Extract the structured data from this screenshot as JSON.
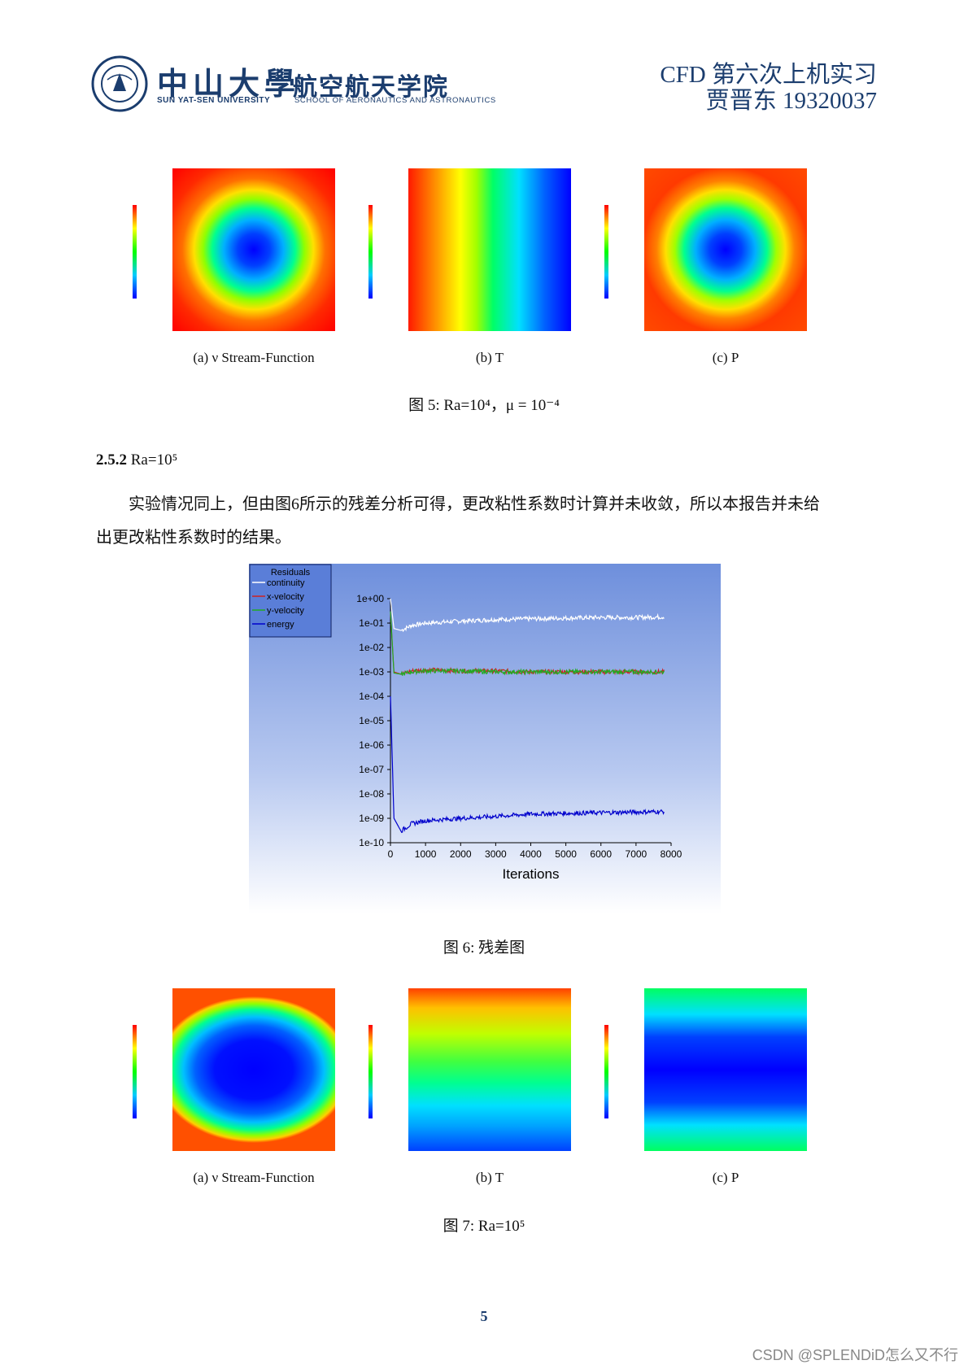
{
  "header": {
    "uni_cn": "中山大學",
    "uni_en": "SUN YAT-SEN UNIVERSITY",
    "school_cn": "航空航天学院",
    "school_en": "SCHOOL OF AERONAUTICS AND ASTRONAUTICS",
    "seal_text": "SUN YAT-SEN UNIVERSITY",
    "title": "CFD 第六次上机实习",
    "author": "贾晋东 19320037"
  },
  "figure5": {
    "captions": [
      "(a) ν Stream-Function",
      "(b) T",
      "(c) P"
    ],
    "caption": "图 5: Ra=10⁴，μ = 10⁻⁴"
  },
  "section": {
    "number": "2.5.2",
    "title": "Ra=10⁵"
  },
  "paragraph": {
    "line1": "实验情况同上，但由图6所示的残差分析可得，更改粘性系数时计算并未收敛，所以本报告并未给",
    "line2": "出更改粘性系数时的结果。"
  },
  "figure6": {
    "caption": "图 6: 残差图"
  },
  "figure7": {
    "captions": [
      "(a) ν Stream-Function",
      "(b) T",
      "(c) P"
    ],
    "caption": "图 7: Ra=10⁵"
  },
  "chart_data": {
    "type": "line",
    "title": "",
    "xlabel": "Iterations",
    "ylabel": "",
    "xlim": [
      0,
      8000
    ],
    "ylim": [
      1e-10,
      1
    ],
    "log_y": true,
    "x_ticks": [
      "0",
      "1000",
      "2000",
      "3000",
      "4000",
      "5000",
      "6000",
      "7000",
      "8000"
    ],
    "y_ticks": [
      "1e+00",
      "1e-01",
      "1e-02",
      "1e-03",
      "1e-04",
      "1e-05",
      "1e-06",
      "1e-07",
      "1e-08",
      "1e-09",
      "1e-10"
    ],
    "legend_title": "Residuals",
    "legend_position": "top-left",
    "series": [
      {
        "name": "continuity",
        "color": "#ffffff",
        "x": [
          0,
          100,
          300,
          600,
          1000,
          2000,
          3000,
          4000,
          5000,
          6000,
          7000,
          7800
        ],
        "y": [
          1.0,
          0.06,
          0.05,
          0.08,
          0.1,
          0.12,
          0.14,
          0.15,
          0.16,
          0.17,
          0.17,
          0.18
        ]
      },
      {
        "name": "x-velocity",
        "color": "#cc2222",
        "x": [
          0,
          100,
          300,
          600,
          1000,
          2000,
          3000,
          4000,
          5000,
          6000,
          7000,
          7800
        ],
        "y": [
          0.3,
          0.001,
          0.0008,
          0.0011,
          0.0012,
          0.0011,
          0.0011,
          0.001,
          0.001,
          0.001,
          0.001,
          0.001
        ]
      },
      {
        "name": "y-velocity",
        "color": "#22aa22",
        "x": [
          0,
          100,
          300,
          600,
          1000,
          2000,
          3000,
          4000,
          5000,
          6000,
          7000,
          7800
        ],
        "y": [
          0.3,
          0.0009,
          0.0008,
          0.001,
          0.0011,
          0.0011,
          0.001,
          0.001,
          0.001,
          0.001,
          0.001,
          0.001
        ]
      },
      {
        "name": "energy",
        "color": "#0000cc",
        "x": [
          0,
          100,
          300,
          600,
          1000,
          2000,
          3000,
          4000,
          5000,
          6000,
          7000,
          7800
        ],
        "y": [
          0.0001,
          1e-09,
          3e-10,
          6e-10,
          8e-10,
          1e-09,
          1.2e-09,
          1.5e-09,
          1.6e-09,
          1.7e-09,
          1.8e-09,
          1.9e-09
        ]
      }
    ]
  },
  "page_number": "5",
  "watermark": "CSDN @SPLENDiD怎么又不行"
}
